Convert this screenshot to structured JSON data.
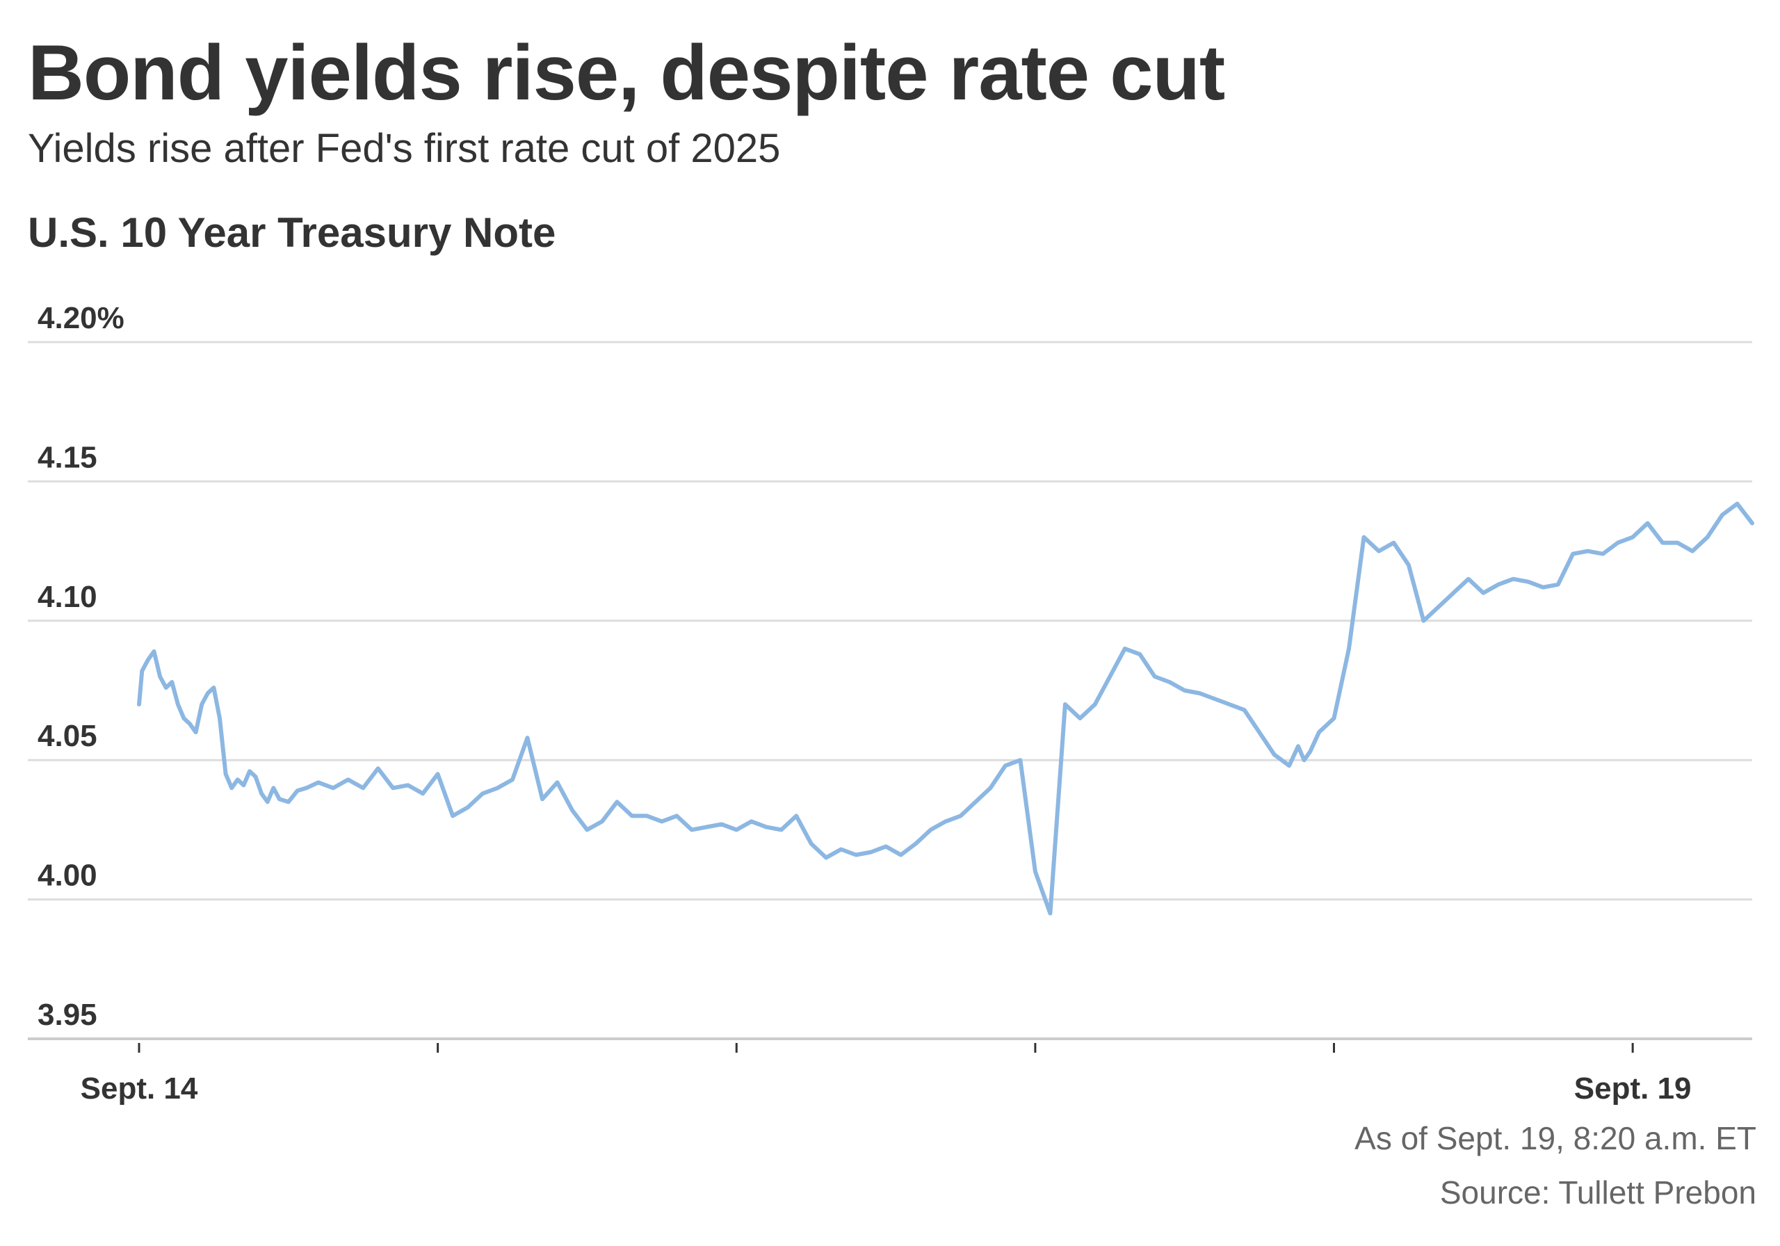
{
  "title": "Bond yields rise, despite rate cut",
  "subtitle": "Yields rise after Fed's first rate cut of 2025",
  "chart_label": "U.S. 10 Year Treasury Note",
  "as_of": "As of Sept. 19, 8:20 a.m. ET",
  "source": "Source: Tullett Prebon",
  "colors": {
    "line": "#8cb7e2",
    "grid": "#dddddd",
    "axis": "#cccccc",
    "text": "#333333",
    "footnote": "#666666"
  },
  "chart_data": {
    "type": "line",
    "title": "U.S. 10 Year Treasury Note",
    "xlabel": "",
    "ylabel": "",
    "xlim": [
      0,
      5.4
    ],
    "ylim": [
      3.95,
      4.2
    ],
    "y_ticks": [
      4.2,
      4.15,
      4.1,
      4.05,
      4.0,
      3.95
    ],
    "y_tick_labels": [
      "4.20%",
      "4.15",
      "4.10",
      "4.05",
      "4.00",
      "3.95"
    ],
    "x_ticks": [
      0,
      1,
      2,
      3,
      4,
      5
    ],
    "x_tick_labels": [
      "Sept. 14",
      "",
      "",
      "",
      "",
      "Sept. 19"
    ],
    "grid": true,
    "series": [
      {
        "name": "U.S. 10 Year Treasury Note yield (%)",
        "x": [
          0.0,
          0.01,
          0.03,
          0.05,
          0.07,
          0.09,
          0.11,
          0.13,
          0.15,
          0.17,
          0.19,
          0.21,
          0.23,
          0.25,
          0.27,
          0.29,
          0.31,
          0.33,
          0.35,
          0.37,
          0.39,
          0.41,
          0.43,
          0.45,
          0.47,
          0.5,
          0.53,
          0.56,
          0.6,
          0.65,
          0.7,
          0.75,
          0.8,
          0.85,
          0.9,
          0.95,
          1.0,
          1.05,
          1.1,
          1.15,
          1.2,
          1.25,
          1.3,
          1.35,
          1.4,
          1.45,
          1.5,
          1.55,
          1.6,
          1.65,
          1.7,
          1.75,
          1.8,
          1.85,
          1.9,
          1.95,
          2.0,
          2.05,
          2.1,
          2.15,
          2.2,
          2.25,
          2.3,
          2.35,
          2.4,
          2.45,
          2.5,
          2.55,
          2.6,
          2.65,
          2.7,
          2.75,
          2.8,
          2.85,
          2.9,
          2.95,
          3.0,
          3.05,
          3.1,
          3.15,
          3.2,
          3.25,
          3.3,
          3.35,
          3.4,
          3.45,
          3.5,
          3.55,
          3.6,
          3.65,
          3.7,
          3.75,
          3.8,
          3.85,
          3.88,
          3.9,
          3.92,
          3.95,
          4.0,
          4.05,
          4.1,
          4.15,
          4.2,
          4.25,
          4.3,
          4.35,
          4.4,
          4.45,
          4.5,
          4.55,
          4.6,
          4.65,
          4.7,
          4.75,
          4.8,
          4.85,
          4.9,
          4.95,
          5.0,
          5.05,
          5.1,
          5.15,
          5.2,
          5.25,
          5.3,
          5.35,
          5.4
        ],
        "values": [
          4.07,
          4.082,
          4.086,
          4.089,
          4.08,
          4.076,
          4.078,
          4.07,
          4.065,
          4.063,
          4.06,
          4.07,
          4.074,
          4.076,
          4.065,
          4.045,
          4.04,
          4.043,
          4.041,
          4.046,
          4.044,
          4.038,
          4.035,
          4.04,
          4.036,
          4.035,
          4.039,
          4.04,
          4.042,
          4.04,
          4.043,
          4.04,
          4.047,
          4.04,
          4.041,
          4.038,
          4.045,
          4.03,
          4.033,
          4.038,
          4.04,
          4.043,
          4.058,
          4.036,
          4.042,
          4.032,
          4.025,
          4.028,
          4.035,
          4.03,
          4.03,
          4.028,
          4.03,
          4.025,
          4.026,
          4.027,
          4.025,
          4.028,
          4.026,
          4.025,
          4.03,
          4.02,
          4.015,
          4.018,
          4.016,
          4.017,
          4.019,
          4.016,
          4.02,
          4.025,
          4.028,
          4.03,
          4.035,
          4.04,
          4.048,
          4.05,
          4.01,
          3.995,
          4.07,
          4.065,
          4.07,
          4.08,
          4.09,
          4.088,
          4.08,
          4.078,
          4.075,
          4.074,
          4.072,
          4.07,
          4.068,
          4.06,
          4.052,
          4.048,
          4.055,
          4.05,
          4.053,
          4.06,
          4.065,
          4.09,
          4.13,
          4.125,
          4.128,
          4.12,
          4.1,
          4.105,
          4.11,
          4.115,
          4.11,
          4.113,
          4.115,
          4.114,
          4.112,
          4.113,
          4.124,
          4.125,
          4.124,
          4.128,
          4.13,
          4.135,
          4.128,
          4.128,
          4.125,
          4.13,
          4.138,
          4.142,
          4.135
        ]
      }
    ]
  }
}
